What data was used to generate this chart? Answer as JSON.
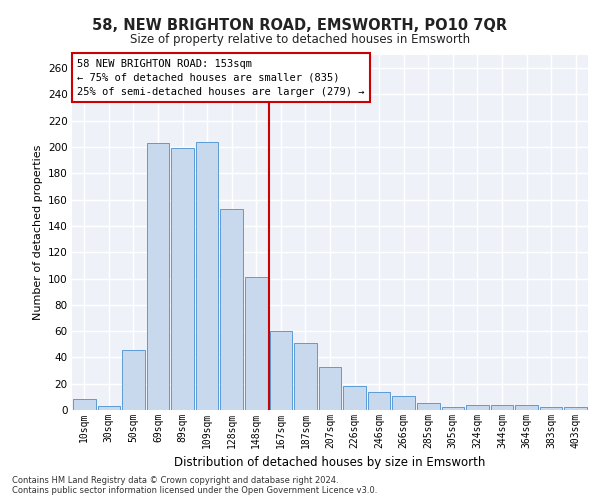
{
  "title": "58, NEW BRIGHTON ROAD, EMSWORTH, PO10 7QR",
  "subtitle": "Size of property relative to detached houses in Emsworth",
  "xlabel": "Distribution of detached houses by size in Emsworth",
  "ylabel": "Number of detached properties",
  "categories": [
    "10sqm",
    "30sqm",
    "50sqm",
    "69sqm",
    "89sqm",
    "109sqm",
    "128sqm",
    "148sqm",
    "167sqm",
    "187sqm",
    "207sqm",
    "226sqm",
    "246sqm",
    "266sqm",
    "285sqm",
    "305sqm",
    "324sqm",
    "344sqm",
    "364sqm",
    "383sqm",
    "403sqm"
  ],
  "values": [
    8,
    3,
    46,
    203,
    199,
    204,
    153,
    101,
    60,
    51,
    33,
    18,
    14,
    11,
    5,
    2,
    4,
    4,
    4,
    2,
    2
  ],
  "bar_color": "#c8d9ed",
  "bar_edge_color": "#5b9bd5",
  "background_color": "#eef2f8",
  "grid_color": "#ffffff",
  "annotation_text": "58 NEW BRIGHTON ROAD: 153sqm\n← 75% of detached houses are smaller (835)\n25% of semi-detached houses are larger (279) →",
  "vline_x_index": 7.5,
  "vline_color": "#cc0000",
  "annotation_box_edge_color": "#cc0000",
  "ylim": [
    0,
    270
  ],
  "yticks": [
    0,
    20,
    40,
    60,
    80,
    100,
    120,
    140,
    160,
    180,
    200,
    220,
    240,
    260
  ],
  "footer_line1": "Contains HM Land Registry data © Crown copyright and database right 2024.",
  "footer_line2": "Contains public sector information licensed under the Open Government Licence v3.0."
}
